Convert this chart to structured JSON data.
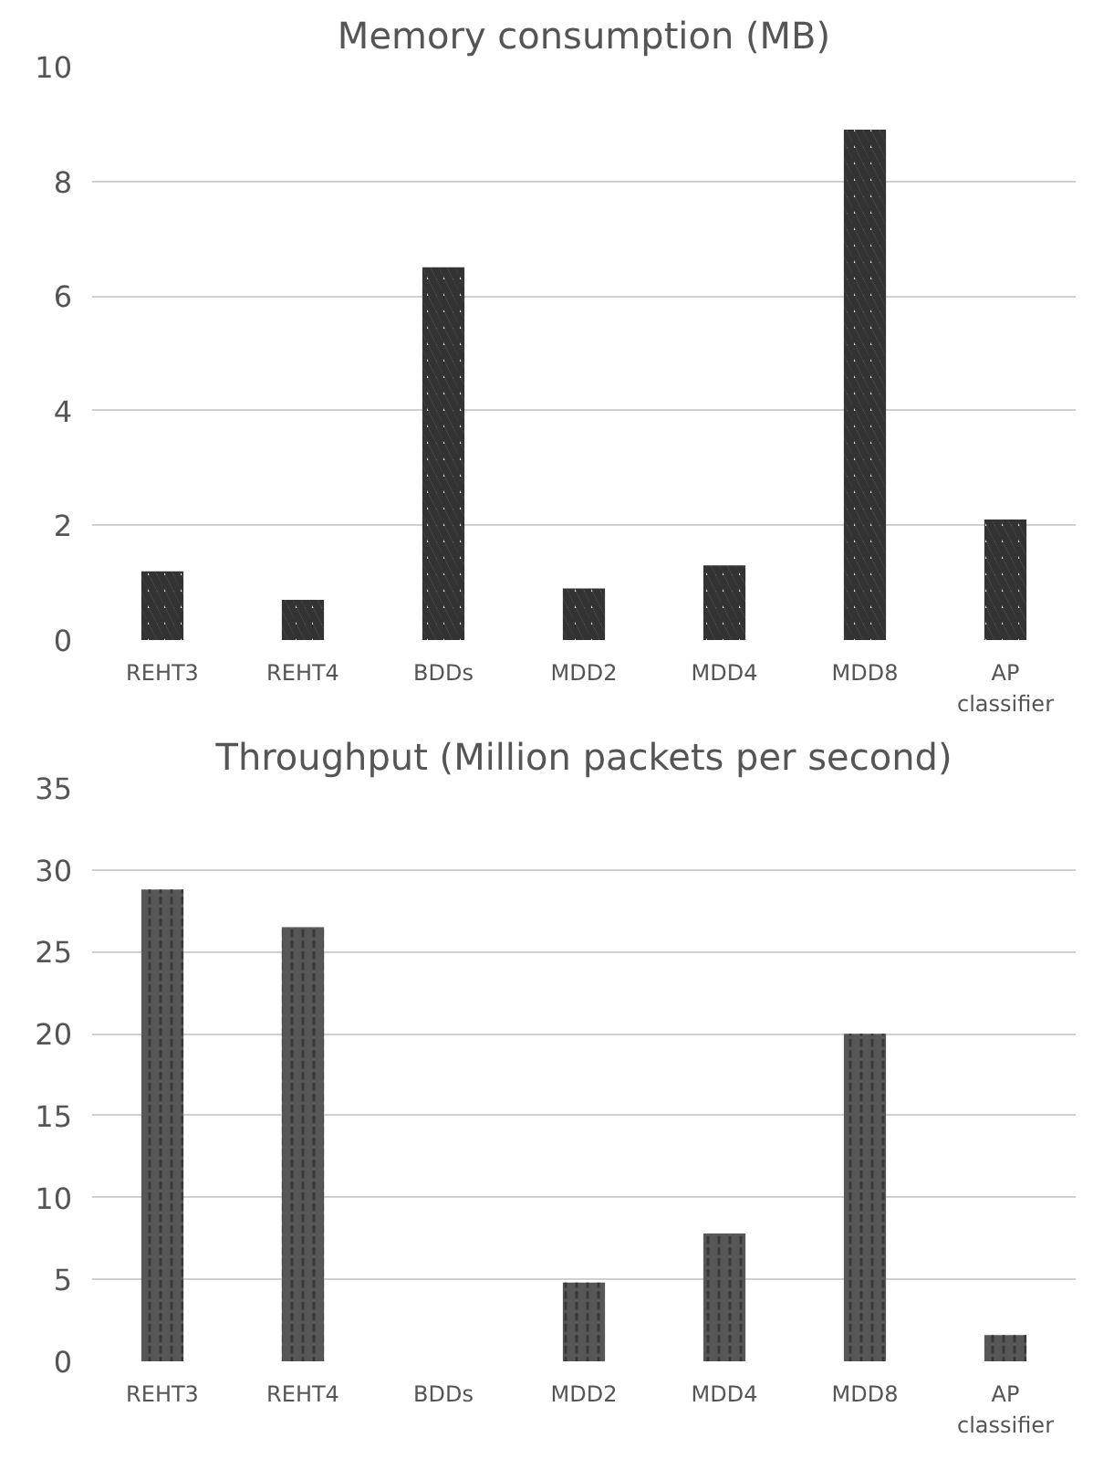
{
  "chart_data": [
    {
      "type": "bar",
      "title": "Memory consumption (MB)",
      "categories": [
        "REHT3",
        "REHT4",
        "BDDs",
        "MDD2",
        "MDD4",
        "MDD8",
        "AP classifier"
      ],
      "values": [
        1.2,
        0.7,
        6.5,
        0.9,
        1.3,
        8.9,
        2.1
      ],
      "color": "#333333",
      "ylim": [
        0,
        10
      ],
      "yticks": [
        0,
        2,
        4,
        6,
        8,
        10
      ],
      "grid": "y"
    },
    {
      "type": "bar",
      "title": "Throughput (Million packets per second)",
      "categories": [
        "REHT3",
        "REHT4",
        "BDDs",
        "MDD2",
        "MDD4",
        "MDD8",
        "AP classifier"
      ],
      "values": [
        28.8,
        26.5,
        null,
        4.8,
        7.8,
        20,
        1.6
      ],
      "color": "#3a3a3a",
      "ylim": [
        0,
        35
      ],
      "yticks": [
        0,
        5,
        10,
        15,
        20,
        25,
        30,
        35
      ],
      "grid": "y"
    }
  ]
}
